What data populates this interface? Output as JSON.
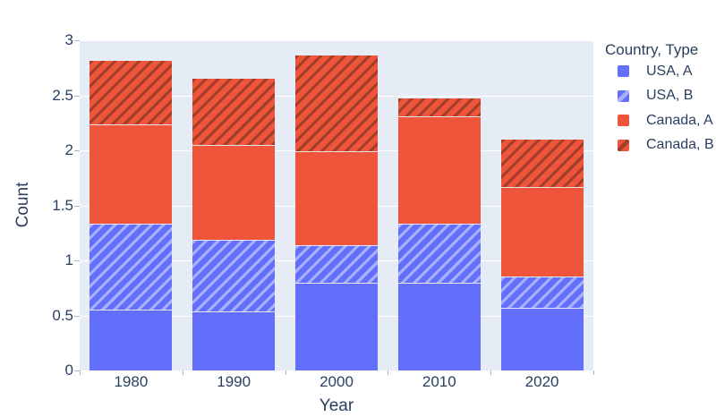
{
  "chart_data": {
    "type": "bar",
    "barmode": "stack",
    "title": "",
    "xlabel": "Year",
    "ylabel": "Count",
    "legend_title": "Country, Type",
    "legend_position": "right",
    "grid": true,
    "categories": [
      "1980",
      "1990",
      "2000",
      "2010",
      "2020"
    ],
    "series": [
      {
        "name": "USA, A",
        "country": "USA",
        "type": "A",
        "pattern": "solid",
        "color": "#636EFA",
        "values": [
          0.55,
          0.54,
          0.8,
          0.8,
          0.57
        ]
      },
      {
        "name": "USA, B",
        "country": "USA",
        "type": "B",
        "pattern": "diagonal",
        "color": "#636EFA",
        "stripe_color": "rgba(255,255,255,0.45)",
        "values": [
          0.78,
          0.65,
          0.34,
          0.53,
          0.28
        ]
      },
      {
        "name": "Canada, A",
        "country": "Canada",
        "type": "A",
        "pattern": "solid",
        "color": "#EF553B",
        "values": [
          0.91,
          0.86,
          0.85,
          0.98,
          0.82
        ]
      },
      {
        "name": "Canada, B",
        "country": "Canada",
        "type": "B",
        "pattern": "diagonal",
        "color": "#EF553B",
        "stripe_color": "rgba(70,35,22,0.45)",
        "values": [
          0.57,
          0.6,
          0.87,
          0.16,
          0.43
        ]
      }
    ],
    "stack_totals": [
      2.81,
      2.65,
      2.86,
      2.47,
      2.1
    ],
    "ylim": [
      0,
      3
    ],
    "yticks": [
      0,
      0.5,
      1,
      1.5,
      2,
      2.5,
      3
    ],
    "colors": {
      "plot_background": "#E5ECF6",
      "gridline": "#FFFFFF",
      "text": "#2A3F5F",
      "tick_mark": "#AAB4C2"
    }
  }
}
